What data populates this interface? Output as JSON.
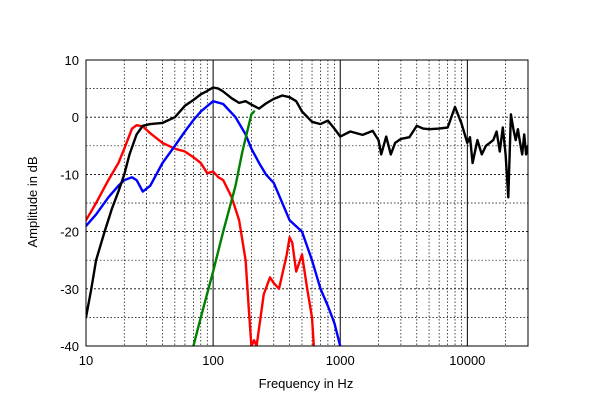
{
  "chart_data": {
    "type": "line",
    "xscale": "log",
    "xlabel": "Frequency in Hz",
    "ylabel": "Amplitude in dB",
    "xlim": [
      10,
      30000
    ],
    "ylim": [
      -40,
      10
    ],
    "grid": true,
    "x_ticks": [
      {
        "value": 10,
        "label": "10"
      },
      {
        "value": 100,
        "label": "100"
      },
      {
        "value": 1000,
        "label": "1000"
      },
      {
        "value": 10000,
        "label": "10000"
      }
    ],
    "y_ticks": [
      {
        "value": 10,
        "label": "10"
      },
      {
        "value": 0,
        "label": "0"
      },
      {
        "value": -10,
        "label": "-10"
      },
      {
        "value": -20,
        "label": "-20"
      },
      {
        "value": -30,
        "label": "-30"
      },
      {
        "value": -40,
        "label": "-40"
      }
    ],
    "series": [
      {
        "color": "#ff0000",
        "x": [
          10,
          12,
          15,
          18,
          20,
          23,
          25,
          28,
          32,
          40,
          50,
          60,
          70,
          80,
          90,
          100,
          110,
          120,
          140,
          160,
          180,
          190,
          200,
          210,
          220,
          250,
          280,
          300,
          330,
          380,
          400,
          420,
          450,
          500,
          550,
          600,
          620
        ],
        "y": [
          -18,
          -15,
          -11,
          -8,
          -5.5,
          -2,
          -1.4,
          -1.6,
          -2.8,
          -4.5,
          -5.5,
          -6,
          -7,
          -8,
          -9.8,
          -9.5,
          -10.5,
          -11,
          -14,
          -18,
          -25,
          -33,
          -40,
          -39,
          -40,
          -31,
          -28,
          -29,
          -30,
          -24,
          -21,
          -22,
          -27,
          -24,
          -30,
          -35,
          -40
        ]
      },
      {
        "color": "#0000ff",
        "x": [
          10,
          12,
          15,
          18,
          20,
          23,
          25,
          28,
          32,
          40,
          50,
          60,
          70,
          80,
          100,
          120,
          150,
          180,
          200,
          230,
          260,
          300,
          350,
          400,
          500,
          600,
          700,
          800,
          900,
          1000
        ],
        "y": [
          -19,
          -17,
          -14,
          -12,
          -11,
          -10.5,
          -11,
          -13,
          -12,
          -8,
          -5,
          -2.5,
          -0.5,
          1,
          2.8,
          2.3,
          0,
          -3,
          -5.5,
          -8,
          -10,
          -11.5,
          -15,
          -18,
          -20,
          -25,
          -30,
          -33,
          -36,
          -40
        ]
      },
      {
        "color": "#008000",
        "x": [
          70,
          80,
          100,
          120,
          150,
          170,
          190,
          200,
          210
        ],
        "y": [
          -40,
          -35,
          -27,
          -20,
          -12,
          -6,
          -1.5,
          0.5,
          1
        ]
      },
      {
        "color": "#000000",
        "x": [
          10,
          11,
          12,
          14,
          16,
          18,
          20,
          22,
          25,
          28,
          32,
          40,
          50,
          60,
          70,
          80,
          90,
          100,
          110,
          120,
          140,
          160,
          180,
          200,
          230,
          260,
          300,
          350,
          400,
          450,
          500,
          600,
          700,
          800,
          900,
          1000,
          1200,
          1500,
          1800,
          2000,
          2100,
          2300,
          2500,
          2700,
          3000,
          3500,
          4000,
          4500,
          5000,
          6000,
          7000,
          8000,
          9000,
          10000,
          10500,
          11000,
          12000,
          13000,
          14000,
          15000,
          16000,
          17000,
          18000,
          19000,
          20000,
          21000,
          22000,
          23000,
          24000,
          25000,
          26000,
          27000,
          28000,
          29000,
          30000
        ],
        "y": [
          -35,
          -30,
          -25,
          -20,
          -16,
          -13,
          -10,
          -6.5,
          -3,
          -1.5,
          -1.2,
          -1,
          0,
          2,
          3,
          4,
          4.6,
          5.2,
          5,
          4.5,
          3.3,
          2.5,
          2.8,
          2.2,
          1.5,
          2.4,
          3.2,
          3.8,
          3.5,
          2.8,
          1,
          -0.8,
          -1.2,
          -0.6,
          -2,
          -3.4,
          -2.5,
          -3.1,
          -2.4,
          -4,
          -6.5,
          -3.4,
          -6.5,
          -4.5,
          -3.8,
          -3.5,
          -1.5,
          -2,
          -2.1,
          -2,
          -1.8,
          1.8,
          -1.1,
          -4.5,
          -3.5,
          -8,
          -4,
          -6.5,
          -5,
          -4.5,
          -4,
          -2.5,
          -6,
          -1.8,
          -6.5,
          -14,
          0.5,
          -2,
          -4,
          -2.1,
          -4.5,
          -6.5,
          -3,
          -6.5,
          -5
        ]
      }
    ]
  }
}
